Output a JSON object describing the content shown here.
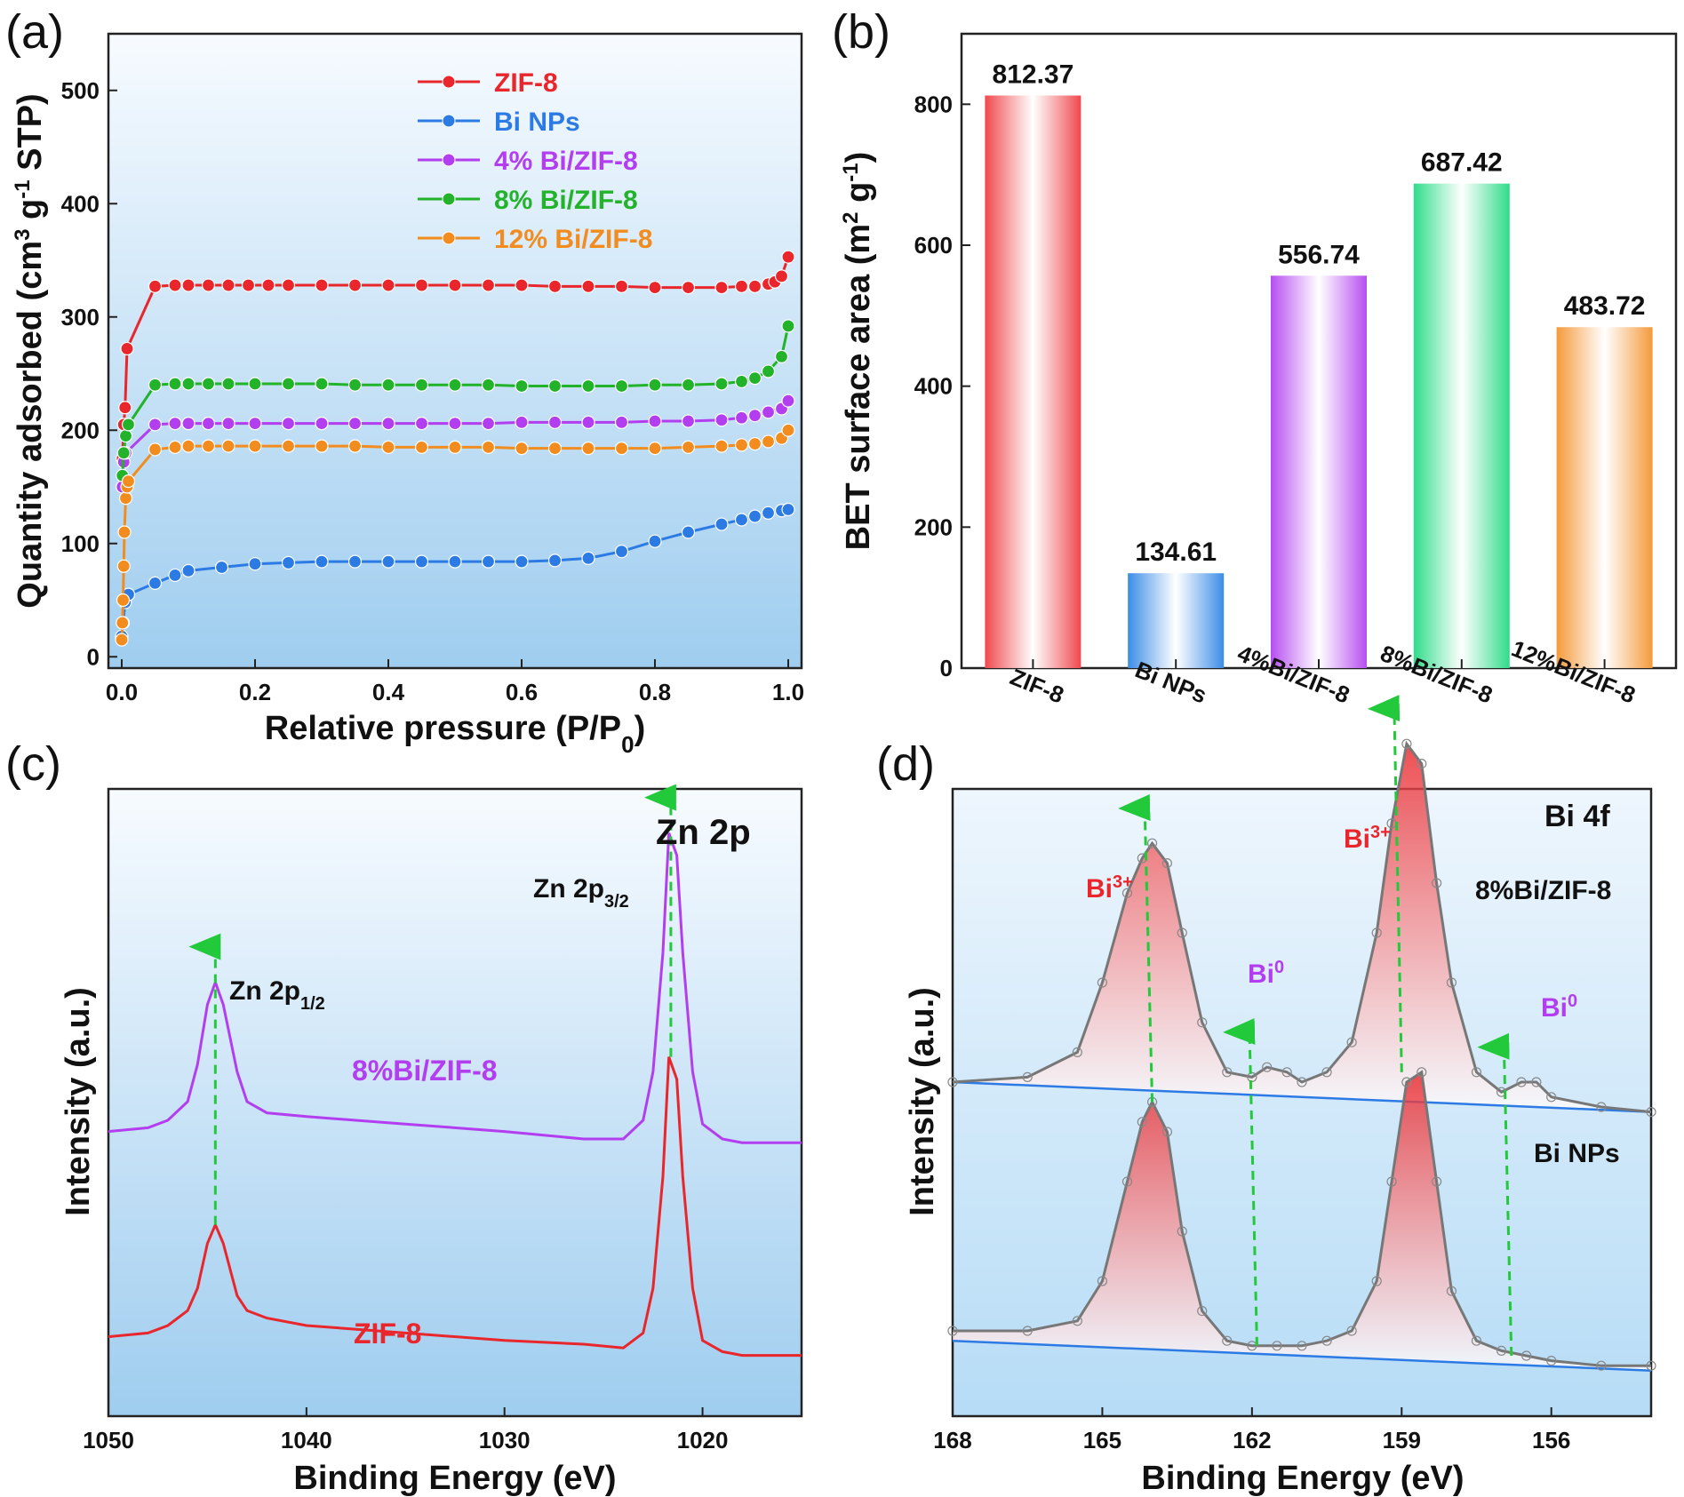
{
  "panels": {
    "a_label": "(a)",
    "b_label": "(b)",
    "c_label": "(c)",
    "d_label": "(d)"
  },
  "colors": {
    "zif8": "#e8262b",
    "bi_nps": "#2c7be5",
    "bi4": "#b23ef0",
    "bi8": "#22b32b",
    "bi12": "#f28c1e",
    "arrow": "#22c93a"
  },
  "chart_data": [
    {
      "id": "a",
      "type": "scatter",
      "xlabel": "Relative pressure (P/P0)",
      "ylabel": "Quantity adsorbed (cm3 g-1 STP)",
      "xlim": [
        -0.02,
        1.02
      ],
      "ylim": [
        -10,
        550
      ],
      "xticks": [
        "0.0",
        "0.2",
        "0.4",
        "0.6",
        "0.8",
        "1.0"
      ],
      "yticks": [
        "0",
        "100",
        "200",
        "300",
        "400",
        "500"
      ],
      "legend_position": "top-center",
      "series": [
        {
          "name": "ZIF-8",
          "color": "#e8262b",
          "x": [
            0.001,
            0.003,
            0.005,
            0.008,
            0.05,
            0.08,
            0.1,
            0.13,
            0.16,
            0.19,
            0.22,
            0.25,
            0.3,
            0.35,
            0.4,
            0.45,
            0.5,
            0.55,
            0.6,
            0.65,
            0.7,
            0.75,
            0.8,
            0.85,
            0.9,
            0.93,
            0.95,
            0.97,
            0.98,
            0.99,
            1.0
          ],
          "y": [
            175,
            205,
            220,
            272,
            327,
            328,
            328,
            328,
            328,
            328,
            328,
            328,
            328,
            328,
            328,
            328,
            328,
            328,
            328,
            327,
            327,
            327,
            326,
            326,
            326,
            327,
            327,
            329,
            331,
            336,
            353
          ]
        },
        {
          "name": "Bi NPs",
          "color": "#2c7be5",
          "x": [
            0.0,
            0.002,
            0.005,
            0.01,
            0.05,
            0.08,
            0.1,
            0.15,
            0.2,
            0.25,
            0.3,
            0.35,
            0.4,
            0.45,
            0.5,
            0.55,
            0.6,
            0.65,
            0.7,
            0.75,
            0.8,
            0.85,
            0.9,
            0.93,
            0.95,
            0.97,
            0.99,
            1.0
          ],
          "y": [
            18,
            30,
            48,
            55,
            65,
            72,
            76,
            79,
            82,
            83,
            84,
            84,
            84,
            84,
            84,
            84,
            84,
            85,
            87,
            93,
            102,
            110,
            117,
            121,
            124,
            127,
            129,
            130
          ]
        },
        {
          "name": "4% Bi/ZIF-8",
          "color": "#b23ef0",
          "x": [
            0.001,
            0.003,
            0.006,
            0.05,
            0.08,
            0.1,
            0.13,
            0.16,
            0.2,
            0.25,
            0.3,
            0.35,
            0.4,
            0.45,
            0.5,
            0.55,
            0.6,
            0.65,
            0.7,
            0.75,
            0.8,
            0.85,
            0.9,
            0.93,
            0.95,
            0.97,
            0.99,
            1.0
          ],
          "y": [
            150,
            172,
            180,
            205,
            206,
            206,
            206,
            206,
            206,
            206,
            206,
            206,
            206,
            206,
            206,
            206,
            207,
            207,
            207,
            207,
            208,
            208,
            209,
            211,
            213,
            216,
            219,
            226
          ]
        },
        {
          "name": "8% Bi/ZIF-8",
          "color": "#22b32b",
          "x": [
            0.001,
            0.003,
            0.006,
            0.01,
            0.05,
            0.08,
            0.1,
            0.13,
            0.16,
            0.2,
            0.25,
            0.3,
            0.35,
            0.4,
            0.45,
            0.5,
            0.55,
            0.6,
            0.65,
            0.7,
            0.75,
            0.8,
            0.85,
            0.9,
            0.93,
            0.95,
            0.97,
            0.99,
            1.0
          ],
          "y": [
            160,
            180,
            195,
            205,
            240,
            241,
            241,
            241,
            241,
            241,
            241,
            241,
            240,
            240,
            240,
            240,
            240,
            239,
            239,
            239,
            239,
            240,
            240,
            241,
            243,
            246,
            252,
            265,
            292
          ]
        },
        {
          "name": "12% Bi/ZIF-8",
          "color": "#f28c1e",
          "x": [
            0.0,
            0.001,
            0.002,
            0.003,
            0.004,
            0.006,
            0.008,
            0.01,
            0.05,
            0.08,
            0.1,
            0.13,
            0.16,
            0.2,
            0.25,
            0.3,
            0.35,
            0.4,
            0.45,
            0.5,
            0.55,
            0.6,
            0.65,
            0.7,
            0.75,
            0.8,
            0.85,
            0.9,
            0.93,
            0.95,
            0.97,
            0.99,
            1.0
          ],
          "y": [
            15,
            30,
            50,
            80,
            110,
            140,
            150,
            155,
            183,
            185,
            186,
            186,
            186,
            186,
            186,
            186,
            186,
            185,
            185,
            185,
            185,
            184,
            184,
            184,
            184,
            184,
            185,
            186,
            187,
            188,
            190,
            193,
            200
          ]
        }
      ]
    },
    {
      "id": "b",
      "type": "bar",
      "ylabel": "BET surface area (m2 g-1)",
      "ylim": [
        0,
        900
      ],
      "yticks": [
        "0",
        "200",
        "400",
        "600",
        "800"
      ],
      "categories": [
        "ZIF-8",
        "Bi NPs",
        "4%Bi/ZIF-8",
        "8%Bi/ZIF-8",
        "12%Bi/ZIF-8"
      ],
      "values": [
        812.37,
        134.61,
        556.74,
        687.42,
        483.72
      ],
      "value_labels": [
        "812.37",
        "134.61",
        "556.74",
        "687.42",
        "483.72"
      ],
      "bar_colors": [
        "#f0484d",
        "#3a8de6",
        "#b64df0",
        "#2fdc8a",
        "#f49a3a"
      ]
    },
    {
      "id": "c",
      "type": "line",
      "xlabel": "Binding Energy (eV)",
      "ylabel": "Intensity (a.u.)",
      "xlim": [
        1050,
        1015
      ],
      "xticks": [
        "1050",
        "1040",
        "1030",
        "1020"
      ],
      "title_annotation": "Zn 2p",
      "peak_labels": [
        "Zn 2p1/2",
        "Zn 2p3/2"
      ],
      "series": [
        {
          "name": "8%Bi/ZIF-8",
          "color": "#b23ef0",
          "x": [
            1050,
            1048,
            1047,
            1046,
            1045.5,
            1045,
            1044.6,
            1044.2,
            1043.5,
            1043,
            1042,
            1040,
            1035,
            1030,
            1026,
            1024,
            1023,
            1022.5,
            1022,
            1021.7,
            1021.3,
            1021,
            1020.5,
            1020,
            1019,
            1018,
            1016,
            1015
          ],
          "y": [
            0.62,
            0.63,
            0.65,
            0.7,
            0.8,
            0.96,
            1.02,
            0.96,
            0.78,
            0.7,
            0.67,
            0.66,
            0.64,
            0.62,
            0.6,
            0.6,
            0.65,
            0.78,
            1.1,
            1.42,
            1.36,
            1.1,
            0.78,
            0.64,
            0.6,
            0.59,
            0.59,
            0.59
          ]
        },
        {
          "name": "ZIF-8",
          "color": "#e8262b",
          "x": [
            1050,
            1048,
            1047,
            1046,
            1045.5,
            1045,
            1044.6,
            1044.2,
            1043.5,
            1043,
            1042,
            1040,
            1035,
            1030,
            1026,
            1024,
            1023,
            1022.5,
            1022,
            1021.7,
            1021.3,
            1021,
            1020.5,
            1020,
            1019,
            1018,
            1016,
            1015
          ],
          "y": [
            0.07,
            0.08,
            0.1,
            0.14,
            0.2,
            0.32,
            0.37,
            0.32,
            0.18,
            0.14,
            0.12,
            0.1,
            0.08,
            0.06,
            0.05,
            0.04,
            0.08,
            0.2,
            0.5,
            0.82,
            0.76,
            0.5,
            0.2,
            0.06,
            0.03,
            0.02,
            0.02,
            0.02
          ]
        }
      ],
      "series_labels": [
        "8%Bi/ZIF-8",
        "ZIF-8"
      ]
    },
    {
      "id": "d",
      "type": "line",
      "xlabel": "Binding Energy (eV)",
      "ylabel": "Intensity (a.u.)",
      "xlim": [
        168,
        154
      ],
      "xticks": [
        "168",
        "165",
        "162",
        "159",
        "156"
      ],
      "title_annotation": "Bi 4f",
      "sample_labels": [
        "8%Bi/ZIF-8",
        "Bi NPs"
      ],
      "peak_labels": [
        "Bi3+",
        "Bi0",
        "Bi3+",
        "Bi0"
      ],
      "series": [
        {
          "name": "8%Bi/ZIF-8",
          "color": "#777777",
          "x": [
            168,
            166.5,
            165.5,
            165,
            164.5,
            164.2,
            164,
            163.7,
            163.4,
            163,
            162.5,
            162,
            161.7,
            161.3,
            161,
            160.5,
            160,
            159.5,
            159.2,
            158.9,
            158.6,
            158.3,
            158,
            157.5,
            157,
            156.6,
            156.3,
            156,
            155,
            154
          ],
          "y": [
            0.6,
            0.61,
            0.66,
            0.8,
            0.98,
            1.05,
            1.08,
            1.04,
            0.9,
            0.72,
            0.62,
            0.61,
            0.63,
            0.62,
            0.6,
            0.62,
            0.68,
            0.9,
            1.12,
            1.28,
            1.24,
            1.0,
            0.8,
            0.62,
            0.58,
            0.6,
            0.6,
            0.57,
            0.55,
            0.54
          ]
        },
        {
          "name": "Bi NPs",
          "color": "#777777",
          "x": [
            168,
            166.5,
            165.5,
            165,
            164.5,
            164.2,
            164,
            163.7,
            163.4,
            163,
            162.5,
            162,
            161.5,
            161,
            160.5,
            160,
            159.5,
            159.2,
            158.9,
            158.6,
            158.3,
            158,
            157.5,
            157,
            156.5,
            156,
            155,
            154
          ],
          "y": [
            0.1,
            0.1,
            0.12,
            0.2,
            0.4,
            0.52,
            0.56,
            0.5,
            0.3,
            0.14,
            0.08,
            0.07,
            0.07,
            0.07,
            0.08,
            0.1,
            0.2,
            0.4,
            0.6,
            0.62,
            0.4,
            0.18,
            0.08,
            0.06,
            0.05,
            0.04,
            0.03,
            0.03
          ]
        }
      ]
    }
  ]
}
